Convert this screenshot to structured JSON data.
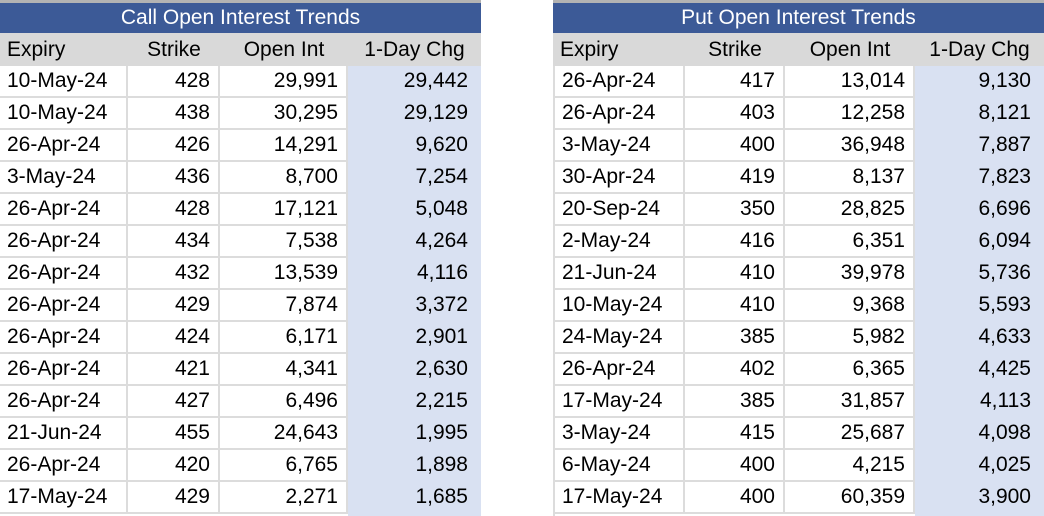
{
  "tables": [
    {
      "title": "Call Open Interest Trends",
      "columns": [
        "Expiry",
        "Strike",
        "Open Int",
        "1-Day Chg"
      ],
      "rows": [
        [
          "10-May-24",
          "428",
          "29,991",
          "29,442"
        ],
        [
          "10-May-24",
          "438",
          "30,295",
          "29,129"
        ],
        [
          "26-Apr-24",
          "426",
          "14,291",
          "9,620"
        ],
        [
          "3-May-24",
          "436",
          "8,700",
          "7,254"
        ],
        [
          "26-Apr-24",
          "428",
          "17,121",
          "5,048"
        ],
        [
          "26-Apr-24",
          "434",
          "7,538",
          "4,264"
        ],
        [
          "26-Apr-24",
          "432",
          "13,539",
          "4,116"
        ],
        [
          "26-Apr-24",
          "429",
          "7,874",
          "3,372"
        ],
        [
          "26-Apr-24",
          "424",
          "6,171",
          "2,901"
        ],
        [
          "26-Apr-24",
          "421",
          "4,341",
          "2,630"
        ],
        [
          "26-Apr-24",
          "427",
          "6,496",
          "2,215"
        ],
        [
          "21-Jun-24",
          "455",
          "24,643",
          "1,995"
        ],
        [
          "26-Apr-24",
          "420",
          "6,765",
          "1,898"
        ],
        [
          "17-May-24",
          "429",
          "2,271",
          "1,685"
        ]
      ]
    },
    {
      "title": "Put Open Interest Trends",
      "columns": [
        "Expiry",
        "Strike",
        "Open Int",
        "1-Day Chg"
      ],
      "rows": [
        [
          "26-Apr-24",
          "417",
          "13,014",
          "9,130"
        ],
        [
          "26-Apr-24",
          "403",
          "12,258",
          "8,121"
        ],
        [
          "3-May-24",
          "400",
          "36,948",
          "7,887"
        ],
        [
          "30-Apr-24",
          "419",
          "8,137",
          "7,823"
        ],
        [
          "20-Sep-24",
          "350",
          "28,825",
          "6,696"
        ],
        [
          "2-May-24",
          "416",
          "6,351",
          "6,094"
        ],
        [
          "21-Jun-24",
          "410",
          "39,978",
          "5,736"
        ],
        [
          "10-May-24",
          "410",
          "9,368",
          "5,593"
        ],
        [
          "24-May-24",
          "385",
          "5,982",
          "4,633"
        ],
        [
          "26-Apr-24",
          "402",
          "6,365",
          "4,425"
        ],
        [
          "17-May-24",
          "385",
          "31,857",
          "4,113"
        ],
        [
          "3-May-24",
          "415",
          "25,687",
          "4,098"
        ],
        [
          "6-May-24",
          "400",
          "4,215",
          "4,025"
        ],
        [
          "17-May-24",
          "400",
          "60,359",
          "3,900"
        ]
      ]
    }
  ],
  "colors": {
    "title_bar_blue": "#3C5A97",
    "title_text": "#FFFFFF",
    "column_header_gray": "#D9D9D9",
    "change_column_lavender": "#D9E1F2",
    "gridline_gray": "#DCDCDC",
    "top_strip_gray": "#B3B3B3",
    "cell_text": "#000000",
    "background": "#FFFFFF"
  }
}
